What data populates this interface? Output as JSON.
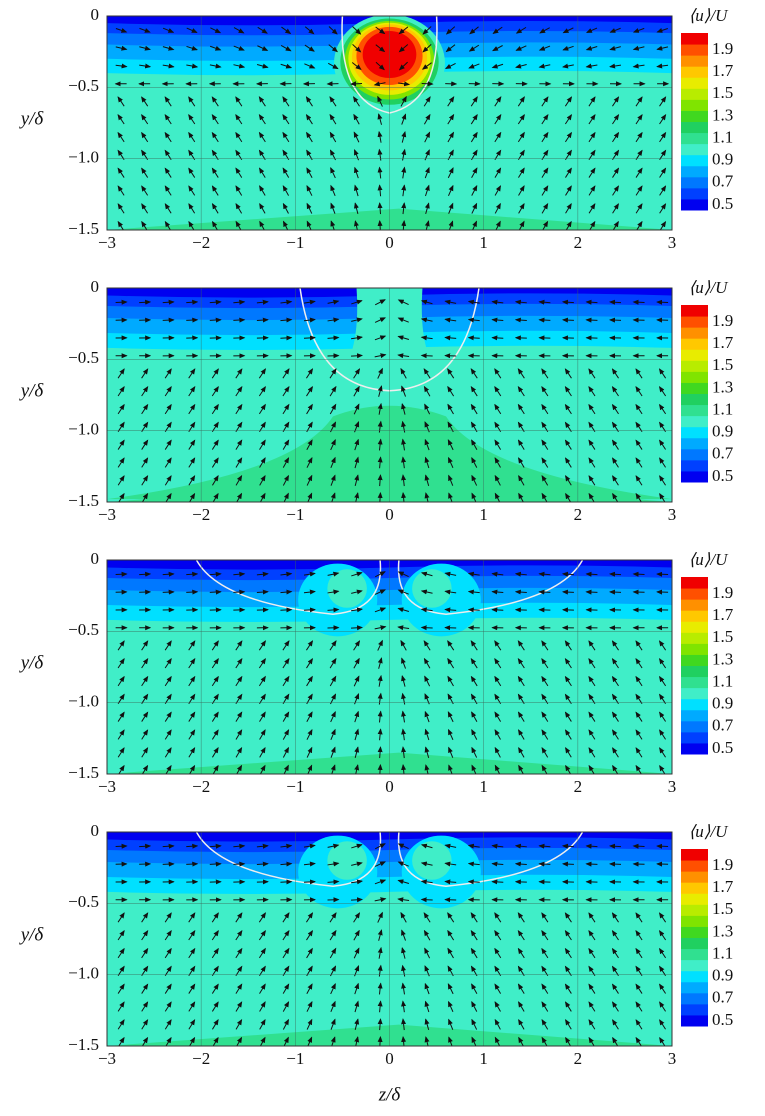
{
  "chart_data": [
    {
      "type": "contour",
      "ylabel": "y/δ",
      "colorbar_title": "⟨u⟩/U",
      "feature": "jet",
      "xlim": [
        -3,
        3
      ],
      "ylim": [
        -1.5,
        0
      ],
      "xticks": [
        {
          "value": -3,
          "label": "−3"
        },
        {
          "value": -2,
          "label": "−2"
        },
        {
          "value": -1,
          "label": "−1"
        },
        0,
        1,
        2,
        3
      ],
      "yticks": [
        0,
        {
          "value": -0.5,
          "label": "−0.5"
        },
        {
          "value": -1,
          "label": "−1.0"
        },
        {
          "value": -1.5,
          "label": "−1.5"
        }
      ],
      "clim": [
        0.4,
        2.0
      ],
      "cticks": [
        0.5,
        0.7,
        0.9,
        1.1,
        1.3,
        1.5,
        1.7,
        1.9
      ],
      "grid": true
    },
    {
      "type": "contour",
      "ylabel": "y/δ",
      "colorbar_title": "⟨u⟩/U",
      "feature": "column",
      "xlim": [
        -3,
        3
      ],
      "ylim": [
        -1.5,
        0
      ],
      "xticks": [
        {
          "value": -3,
          "label": "−3"
        },
        {
          "value": -2,
          "label": "−2"
        },
        {
          "value": -1,
          "label": "−1"
        },
        0,
        1,
        2,
        3
      ],
      "yticks": [
        0,
        {
          "value": -0.5,
          "label": "−0.5"
        },
        {
          "value": -1,
          "label": "−1.0"
        },
        {
          "value": -1.5,
          "label": "−1.5"
        }
      ],
      "clim": [
        0.4,
        2.0
      ],
      "cticks": [
        0.5,
        0.7,
        0.9,
        1.1,
        1.3,
        1.5,
        1.7,
        1.9
      ],
      "grid": true
    },
    {
      "type": "contour",
      "ylabel": "y/δ",
      "colorbar_title": "⟨u⟩/U",
      "feature": "lobes",
      "xlim": [
        -3,
        3
      ],
      "ylim": [
        -1.5,
        0
      ],
      "xticks": [
        {
          "value": -3,
          "label": "−3"
        },
        {
          "value": -2,
          "label": "−2"
        },
        {
          "value": -1,
          "label": "−1"
        },
        0,
        1,
        2,
        3
      ],
      "yticks": [
        0,
        {
          "value": -0.5,
          "label": "−0.5"
        },
        {
          "value": -1,
          "label": "−1.0"
        },
        {
          "value": -1.5,
          "label": "−1.5"
        }
      ],
      "clim": [
        0.4,
        2.0
      ],
      "cticks": [
        0.5,
        0.7,
        0.9,
        1.1,
        1.3,
        1.5,
        1.7,
        1.9
      ],
      "grid": true
    },
    {
      "type": "contour",
      "ylabel": "y/δ",
      "colorbar_title": "⟨u⟩/U",
      "xlabel": "z/δ",
      "feature": "lobes",
      "xlim": [
        -3,
        3
      ],
      "ylim": [
        -1.5,
        0
      ],
      "xticks": [
        {
          "value": -3,
          "label": "−3"
        },
        {
          "value": -2,
          "label": "−2"
        },
        {
          "value": -1,
          "label": "−1"
        },
        0,
        1,
        2,
        3
      ],
      "yticks": [
        0,
        {
          "value": -0.5,
          "label": "−0.5"
        },
        {
          "value": -1,
          "label": "−1.0"
        },
        {
          "value": -1.5,
          "label": "−1.5"
        }
      ],
      "clim": [
        0.4,
        2.0
      ],
      "cticks": [
        0.5,
        0.7,
        0.9,
        1.1,
        1.3,
        1.5,
        1.7,
        1.9
      ],
      "grid": true
    }
  ],
  "colorbar_colors": [
    "#0000f0",
    "#0040ff",
    "#0078ff",
    "#00aaff",
    "#00e0ff",
    "#40eec8",
    "#30e090",
    "#20d060",
    "#40d820",
    "#80e400",
    "#b8ec00",
    "#e8ec00",
    "#ffc800",
    "#ff9000",
    "#ff5000",
    "#f00000"
  ]
}
